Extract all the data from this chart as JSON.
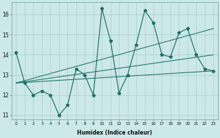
{
  "xlabel": "Humidex (Indice chaleur)",
  "ylabel": "",
  "bg_color": "#cce8e8",
  "line_color": "#1a6e64",
  "grid_color": "#aacfcf",
  "x_data": [
    0,
    1,
    2,
    3,
    4,
    5,
    6,
    7,
    8,
    9,
    10,
    11,
    12,
    13,
    14,
    15,
    16,
    17,
    18,
    19,
    20,
    21,
    22,
    23
  ],
  "y_data": [
    14.1,
    12.6,
    12.0,
    12.2,
    12.0,
    11.0,
    11.5,
    13.3,
    13.0,
    12.0,
    16.3,
    14.7,
    12.1,
    13.0,
    14.5,
    16.2,
    15.6,
    14.0,
    13.9,
    15.1,
    15.3,
    14.0,
    13.3,
    13.2
  ],
  "ylim": [
    10.8,
    16.6
  ],
  "xlim": [
    -0.5,
    23.5
  ],
  "yticks": [
    11,
    12,
    13,
    14,
    15,
    16
  ],
  "xticks": [
    0,
    1,
    2,
    3,
    4,
    5,
    6,
    7,
    8,
    9,
    10,
    11,
    12,
    13,
    14,
    15,
    16,
    17,
    18,
    19,
    20,
    21,
    22,
    23
  ],
  "trend_lines": [
    {
      "x_start": 0,
      "y_start": 12.6,
      "x_end": 23,
      "y_end": 13.2
    },
    {
      "x_start": 0,
      "y_start": 12.6,
      "x_end": 23,
      "y_end": 14.0
    },
    {
      "x_start": 0,
      "y_start": 12.6,
      "x_end": 23,
      "y_end": 15.3
    }
  ]
}
